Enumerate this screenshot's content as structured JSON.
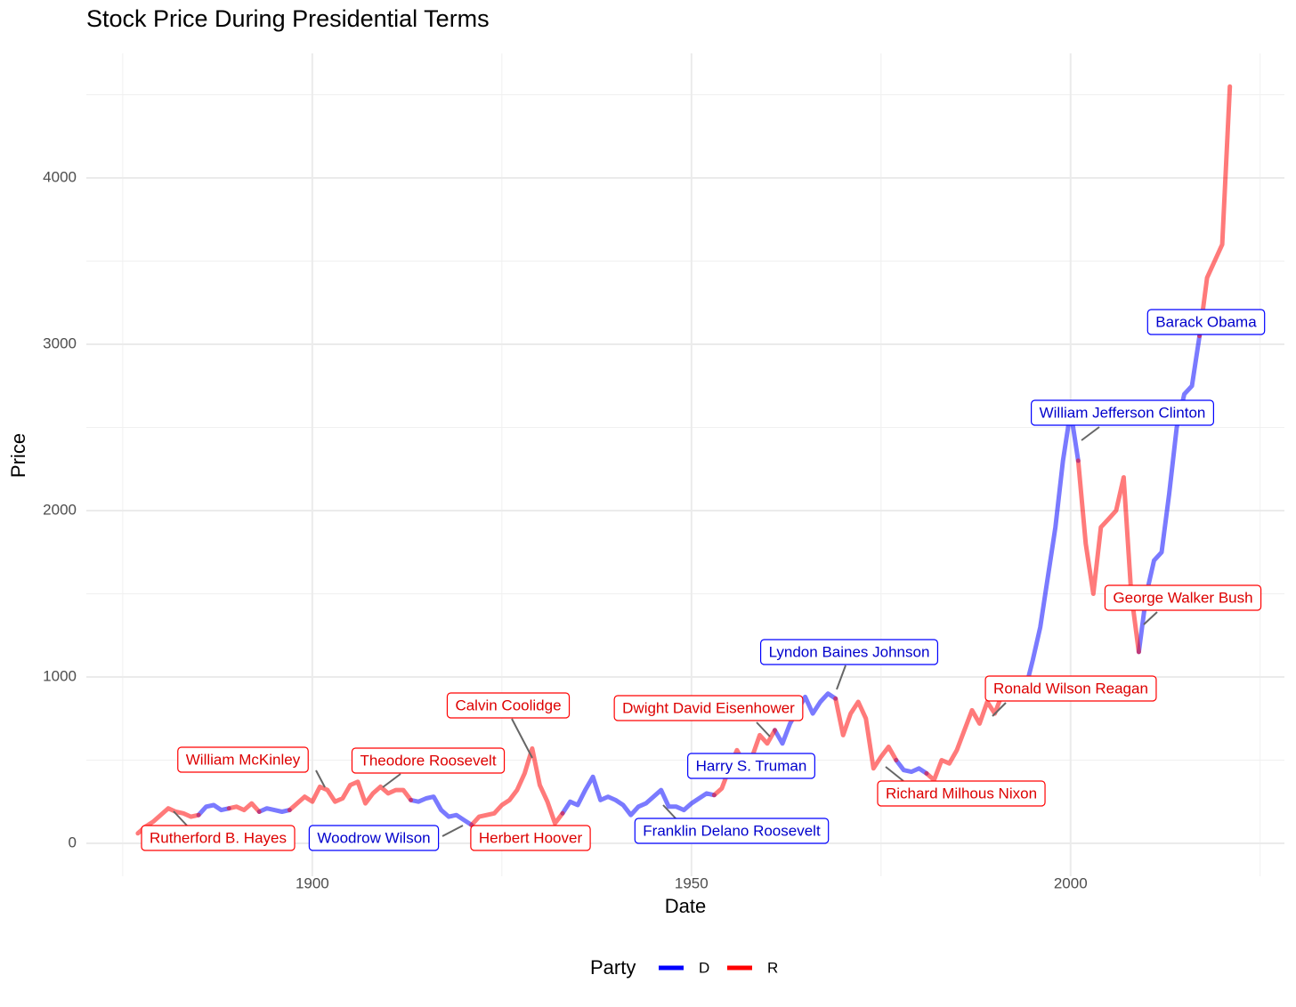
{
  "chart_data": {
    "type": "line",
    "title": "Stock Price During Presidential Terms",
    "x_label": "Date",
    "y_label": "Price",
    "legend_title": "Party",
    "x": [
      1877,
      1878,
      1879,
      1880,
      1881,
      1882,
      1883,
      1884,
      1885,
      1886,
      1887,
      1888,
      1889,
      1890,
      1891,
      1892,
      1893,
      1894,
      1895,
      1896,
      1897,
      1898,
      1899,
      1900,
      1901,
      1902,
      1903,
      1904,
      1905,
      1906,
      1907,
      1908,
      1909,
      1910,
      1911,
      1912,
      1913,
      1914,
      1915,
      1916,
      1917,
      1918,
      1919,
      1920,
      1921,
      1922,
      1923,
      1924,
      1925,
      1926,
      1927,
      1928,
      1929,
      1930,
      1931,
      1932,
      1933,
      1934,
      1935,
      1936,
      1937,
      1938,
      1939,
      1940,
      1941,
      1942,
      1943,
      1944,
      1945,
      1946,
      1947,
      1948,
      1949,
      1950,
      1951,
      1952,
      1953,
      1954,
      1955,
      1956,
      1957,
      1958,
      1959,
      1960,
      1961,
      1962,
      1963,
      1964,
      1965,
      1966,
      1967,
      1968,
      1969,
      1970,
      1971,
      1972,
      1973,
      1974,
      1975,
      1976,
      1977,
      1978,
      1979,
      1980,
      1981,
      1982,
      1983,
      1984,
      1985,
      1986,
      1987,
      1988,
      1989,
      1990,
      1991,
      1992,
      1993,
      1994,
      1995,
      1996,
      1997,
      1998,
      1999,
      2000,
      2001,
      2002,
      2003,
      2004,
      2005,
      2006,
      2007,
      2008,
      2009,
      2010,
      2011,
      2012,
      2013,
      2014,
      2015,
      2016,
      2017,
      2018,
      2019,
      2020,
      2021
    ],
    "series": [
      {
        "name": "D",
        "color": "#0000ff",
        "values": [
          null,
          null,
          null,
          null,
          null,
          null,
          null,
          null,
          170,
          220,
          230,
          200,
          210,
          null,
          null,
          null,
          190,
          210,
          200,
          190,
          200,
          null,
          null,
          null,
          null,
          null,
          null,
          null,
          null,
          null,
          null,
          null,
          null,
          null,
          null,
          null,
          260,
          250,
          270,
          280,
          200,
          160,
          170,
          140,
          110,
          null,
          null,
          null,
          null,
          null,
          null,
          null,
          null,
          null,
          null,
          null,
          180,
          250,
          230,
          320,
          400,
          260,
          280,
          260,
          230,
          170,
          220,
          240,
          280,
          320,
          220,
          220,
          200,
          240,
          270,
          300,
          290,
          null,
          null,
          null,
          null,
          null,
          null,
          null,
          680,
          600,
          720,
          800,
          880,
          780,
          850,
          900,
          870,
          null,
          null,
          null,
          null,
          null,
          null,
          null,
          500,
          440,
          430,
          450,
          420,
          null,
          null,
          null,
          null,
          null,
          null,
          null,
          null,
          null,
          null,
          null,
          950,
          920,
          1100,
          1300,
          1600,
          1900,
          2300,
          2600,
          2300,
          null,
          null,
          null,
          null,
          null,
          null,
          null,
          1150,
          1500,
          1700,
          1750,
          2100,
          2500,
          2700,
          2750,
          3050,
          null,
          null,
          null,
          null
        ]
      },
      {
        "name": "R",
        "color": "#ff0000",
        "values": [
          60,
          100,
          130,
          170,
          210,
          190,
          180,
          160,
          170,
          null,
          null,
          null,
          210,
          220,
          200,
          240,
          190,
          null,
          null,
          null,
          200,
          240,
          280,
          250,
          340,
          320,
          250,
          270,
          350,
          370,
          240,
          300,
          340,
          300,
          320,
          320,
          260,
          null,
          null,
          null,
          null,
          null,
          null,
          null,
          110,
          160,
          170,
          180,
          230,
          260,
          320,
          420,
          570,
          350,
          250,
          120,
          180,
          null,
          null,
          null,
          null,
          null,
          null,
          null,
          null,
          null,
          null,
          null,
          null,
          null,
          null,
          null,
          null,
          null,
          null,
          null,
          290,
          330,
          450,
          560,
          480,
          520,
          650,
          600,
          680,
          null,
          null,
          null,
          null,
          null,
          null,
          null,
          870,
          650,
          780,
          850,
          750,
          450,
          520,
          580,
          500,
          null,
          null,
          null,
          420,
          380,
          500,
          480,
          560,
          680,
          800,
          720,
          850,
          780,
          900,
          920,
          950,
          null,
          null,
          null,
          null,
          null,
          null,
          null,
          2300,
          1800,
          1500,
          1900,
          1950,
          2000,
          2200,
          1500,
          1150,
          null,
          null,
          null,
          null,
          null,
          null,
          null,
          3050,
          3400,
          3500,
          3600,
          4550
        ]
      }
    ],
    "annotations": [
      {
        "text": "Rutherford B. Hayes",
        "party": "R"
      },
      {
        "text": "Woodrow Wilson",
        "party": "D"
      },
      {
        "text": "Herbert Hoover",
        "party": "R"
      },
      {
        "text": "Franklin Delano Roosevelt",
        "party": "D"
      },
      {
        "text": "William McKinley",
        "party": "R"
      },
      {
        "text": "Theodore Roosevelt",
        "party": "R"
      },
      {
        "text": "Calvin Coolidge",
        "party": "R"
      },
      {
        "text": "Dwight David Eisenhower",
        "party": "R"
      },
      {
        "text": "Harry S. Truman",
        "party": "D"
      },
      {
        "text": "Lyndon Baines Johnson",
        "party": "D"
      },
      {
        "text": "Richard Milhous Nixon",
        "party": "R"
      },
      {
        "text": "Ronald Wilson Reagan",
        "party": "R"
      },
      {
        "text": "William Jefferson Clinton",
        "party": "D"
      },
      {
        "text": "George Walker Bush",
        "party": "R"
      },
      {
        "text": "Barack Obama",
        "party": "D"
      }
    ],
    "xlim": [
      1870.2,
      2028.2
    ],
    "xticks": [
      1900,
      1950,
      2000
    ],
    "xminor": [
      1875,
      1925,
      1975,
      2025
    ],
    "ylim": [
      -198,
      4749
    ],
    "yticks": [
      0,
      1000,
      2000,
      3000,
      4000
    ],
    "yminor": [
      500,
      1500,
      2500,
      3500,
      4500
    ],
    "grid": true,
    "legend": "bottom"
  }
}
